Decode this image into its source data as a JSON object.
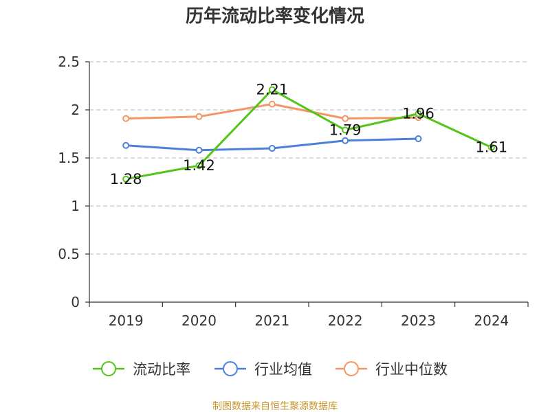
{
  "chart_data": {
    "type": "line",
    "title": "历年流动比率变化情况",
    "categories": [
      "2019",
      "2020",
      "2021",
      "2022",
      "2023",
      "2024"
    ],
    "ylim": [
      0,
      2.5
    ],
    "yticks": [
      "0",
      "0.5",
      "1",
      "1.5",
      "2",
      "2.5"
    ],
    "grid": true,
    "legend_position": "bottom",
    "series": [
      {
        "name": "流动比率",
        "color": "#52c41a",
        "values": [
          1.28,
          1.42,
          2.21,
          1.79,
          1.96,
          1.61
        ],
        "labels": [
          "1.28",
          "1.42",
          "2.21",
          "1.79",
          "1.96",
          "1.61"
        ]
      },
      {
        "name": "行业均值",
        "color": "#4a7fdb",
        "values": [
          1.63,
          1.58,
          1.6,
          1.68,
          1.7,
          null
        ]
      },
      {
        "name": "行业中位数",
        "color": "#f59563",
        "values": [
          1.91,
          1.93,
          2.06,
          1.91,
          1.92,
          null
        ]
      }
    ]
  },
  "source": "制图数据来自恒生聚源数据库"
}
